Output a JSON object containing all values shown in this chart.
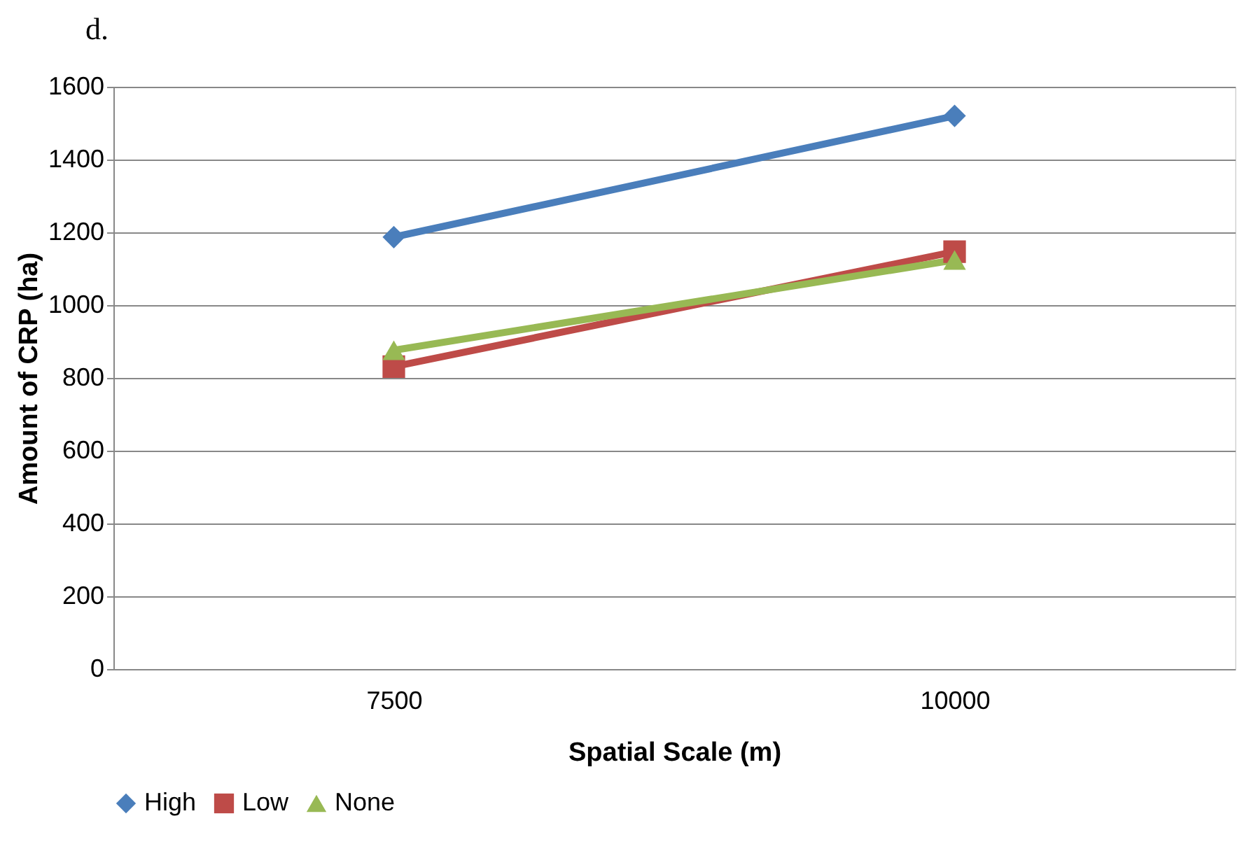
{
  "chart_data": {
    "type": "line",
    "title": "d.",
    "xlabel": "Spatial Scale (m)",
    "ylabel": "Amount of CRP (ha)",
    "categories": [
      "7500",
      "10000"
    ],
    "series": [
      {
        "name": "High",
        "color": "#4a7ebb",
        "marker": "diamond",
        "values": [
          1187,
          1520
        ]
      },
      {
        "name": "Low",
        "color": "#be4b48",
        "marker": "square",
        "values": [
          831,
          1147
        ]
      },
      {
        "name": "None",
        "color": "#98b954",
        "marker": "triangle",
        "values": [
          876,
          1124
        ]
      }
    ],
    "ylim": [
      0,
      1600
    ],
    "yticks": [
      0,
      200,
      400,
      600,
      800,
      1000,
      1200,
      1400,
      1600
    ],
    "grid": "y",
    "legend": "bottom"
  }
}
